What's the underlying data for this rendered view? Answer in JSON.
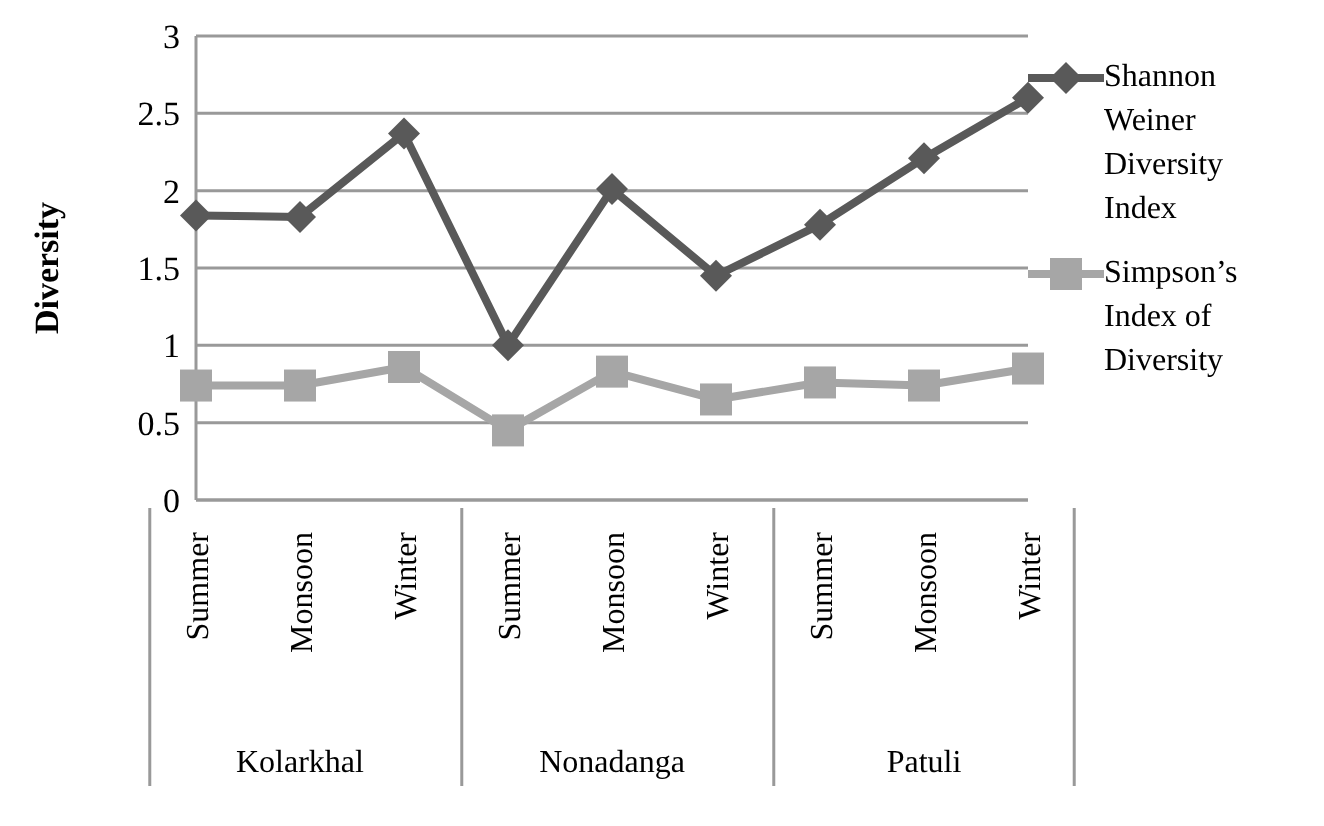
{
  "chart_data": {
    "type": "line",
    "ylabel": "Diversity",
    "categories": [
      "Summer",
      "Monsoon",
      "Winter",
      "Summer",
      "Monsoon",
      "Winter",
      "Summer",
      "Monsoon",
      "Winter"
    ],
    "annotations": [
      "Kolarkhal",
      "Nonadanga",
      "Patuli"
    ],
    "series": [
      {
        "name": "Shannon Weiner Diversity Index",
        "color": "#595959",
        "marker": "diamond",
        "values": [
          1.84,
          1.83,
          2.37,
          1.0,
          2.01,
          1.45,
          1.78,
          2.21,
          2.6
        ]
      },
      {
        "name": "Simpson’s Index of Diversity",
        "color": "#a6a6a6",
        "marker": "square",
        "values": [
          0.74,
          0.74,
          0.86,
          0.45,
          0.83,
          0.65,
          0.76,
          0.74,
          0.85
        ]
      }
    ],
    "ylim": [
      0,
      3
    ],
    "yticks": [
      0,
      0.5,
      1,
      1.5,
      2,
      2.5,
      3
    ],
    "grid": "y",
    "legend": "right"
  }
}
